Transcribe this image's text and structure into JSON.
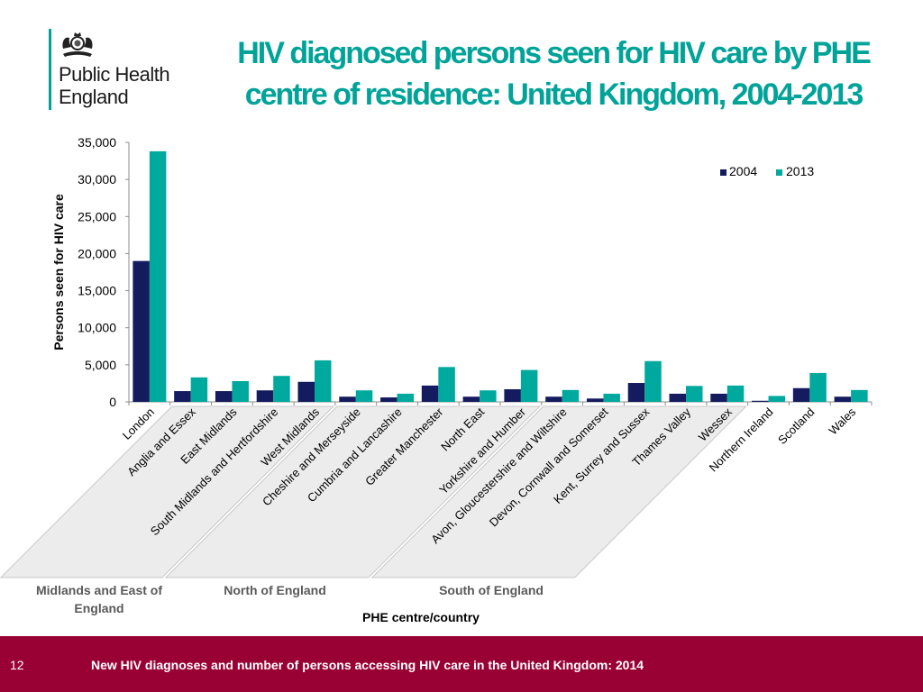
{
  "logo": {
    "line1": "Public Health",
    "line2": "England",
    "crest_icon": "royal-coat-of-arms-icon"
  },
  "title": "HIV diagnosed persons seen for HIV care by PHE centre of residence: United Kingdom, 2004-2013",
  "footer": {
    "page_number": "12",
    "text": "New HIV diagnoses and number of persons accessing HIV care in the United Kingdom: 2014"
  },
  "colors": {
    "accent": "#00a398",
    "series_2004": "#141b5e",
    "series_2013": "#00a99d",
    "footer_bg": "#990033",
    "group_box": "#ececec"
  },
  "chart_data": {
    "type": "bar",
    "title": "HIV diagnosed persons seen for HIV care by PHE centre of residence: United Kingdom, 2004-2013",
    "xlabel": "PHE centre/country",
    "ylabel": "Persons seen for HIV care",
    "ylim": [
      0,
      35000
    ],
    "yticks": [
      0,
      5000,
      10000,
      15000,
      20000,
      25000,
      30000,
      35000
    ],
    "ytick_labels": [
      "0",
      "5,000",
      "10,000",
      "15,000",
      "20,000",
      "25,000",
      "30,000",
      "35,000"
    ],
    "grid": false,
    "legend": {
      "position": "top-right",
      "entries": [
        "2004",
        "2013"
      ]
    },
    "categories": [
      "London",
      "Anglia and Essex",
      "East Midlands",
      "South Midlands and Hertfordshire",
      "West Midlands",
      "Cheshire and Merseyside",
      "Cumbria and Lancashire",
      "Greater Manchester",
      "North East",
      "Yorkshire and Humber",
      "Avon, Gloucestershire and Wiltshire",
      "Devon, Cornwall and Somerset",
      "Kent, Surrey and Sussex",
      "Thames Valley",
      "Wessex",
      "Northern Ireland",
      "Scotland",
      "Wales"
    ],
    "series": [
      {
        "name": "2004",
        "values": [
          19000,
          1450,
          1450,
          1550,
          2700,
          700,
          600,
          2200,
          700,
          1700,
          700,
          450,
          2550,
          1100,
          1100,
          150,
          1850,
          700
        ]
      },
      {
        "name": "2013",
        "values": [
          33800,
          3300,
          2800,
          3500,
          5600,
          1550,
          1100,
          4700,
          1550,
          4300,
          1600,
          1100,
          5500,
          2150,
          2200,
          800,
          3900,
          1600
        ]
      }
    ],
    "groups": [
      {
        "label": "Midlands and East of England",
        "lines": [
          "Midlands and East of",
          "England"
        ],
        "start": 1,
        "end": 4
      },
      {
        "label": "North of England",
        "lines": [
          "North of England"
        ],
        "start": 5,
        "end": 9
      },
      {
        "label": "South of England",
        "lines": [
          "South of England"
        ],
        "start": 10,
        "end": 14
      }
    ]
  }
}
